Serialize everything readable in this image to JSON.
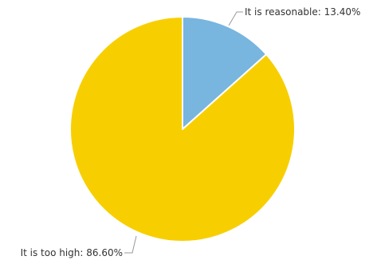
{
  "chart_data": {
    "type": "pie",
    "slices": [
      {
        "label": "It is reasonable: 13.40%",
        "category": "It is reasonable",
        "value": 13.4,
        "color": "#78b5df"
      },
      {
        "label": "It is too high: 86.60%",
        "category": "It is too high",
        "value": 86.6,
        "color": "#f7cf00"
      }
    ],
    "start": "top",
    "direction": "clockwise",
    "separator_color": "#ffffff",
    "legend": "none"
  }
}
